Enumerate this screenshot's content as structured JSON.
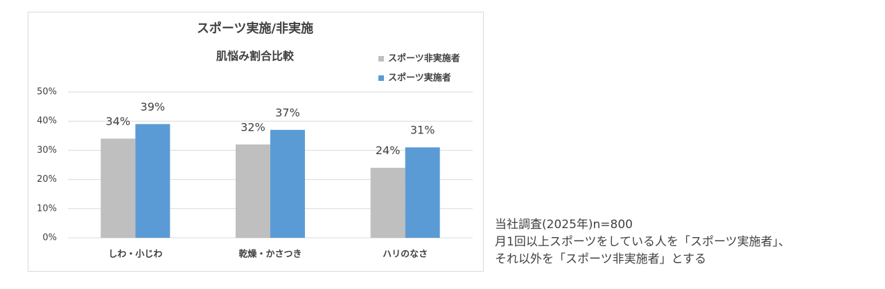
{
  "chart_data": {
    "type": "bar",
    "title": "スポーツ実施/非実施",
    "subtitle": "肌悩み割合比較",
    "categories": [
      "しわ・小じわ",
      "乾燥・かさつき",
      "ハリのなさ"
    ],
    "series": [
      {
        "name": "スポーツ非実施者",
        "color": "#bfbfbf",
        "values": [
          34,
          32,
          24
        ],
        "value_labels": [
          "34%",
          "32%",
          "24%"
        ]
      },
      {
        "name": "スポーツ実施者",
        "color": "#5b9bd5",
        "values": [
          39,
          37,
          31
        ],
        "value_labels": [
          "39%",
          "37%",
          "31%"
        ]
      }
    ],
    "ylim": [
      0,
      50
    ],
    "yticks": [
      {
        "value": 0,
        "label": "0%"
      },
      {
        "value": 10,
        "label": "10%"
      },
      {
        "value": 20,
        "label": "20%"
      },
      {
        "value": 30,
        "label": "30%"
      },
      {
        "value": 40,
        "label": "40%"
      },
      {
        "value": 50,
        "label": "50%"
      }
    ],
    "grid": true,
    "legend": "top-right",
    "annotations": [
      "当社調査(2025年)n=800",
      "月1回以上スポーツをしている人を「スポーツ実施者」、",
      "それ以外を「スポーツ非実施者」とする"
    ]
  }
}
